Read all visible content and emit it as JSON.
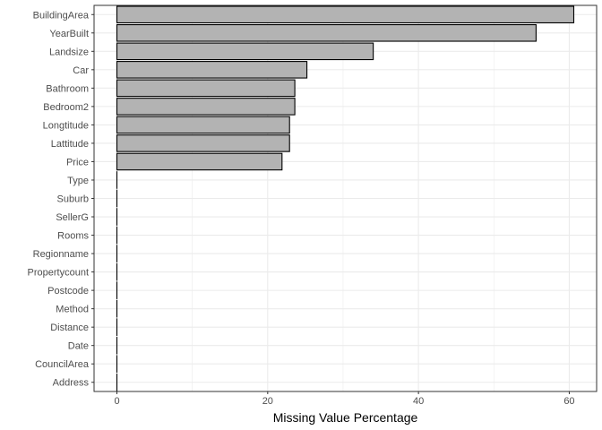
{
  "chart_data": {
    "type": "bar",
    "orientation": "horizontal",
    "categories": [
      "BuildingArea",
      "YearBuilt",
      "Landsize",
      "Car",
      "Bathroom",
      "Bedroom2",
      "Longtitude",
      "Lattitude",
      "Price",
      "Type",
      "Suburb",
      "SellerG",
      "Rooms",
      "Regionname",
      "Propertycount",
      "Postcode",
      "Method",
      "Distance",
      "Date",
      "CouncilArea",
      "Address"
    ],
    "values": [
      60.6,
      55.6,
      34.0,
      25.2,
      23.6,
      23.6,
      22.9,
      22.9,
      21.9,
      0,
      0,
      0,
      0,
      0,
      0,
      0,
      0,
      0,
      0,
      0,
      0
    ],
    "title": "",
    "xlabel": "Missing Value Percentage",
    "ylabel": "",
    "xlim": [
      -3.03,
      63.63
    ],
    "x_ticks": [
      0,
      20,
      40,
      60
    ],
    "grid": true,
    "bar_fill": "#b3b3b3",
    "bar_stroke": "#000000",
    "grid_color": "#ebebeb",
    "border_color": "#333333"
  }
}
